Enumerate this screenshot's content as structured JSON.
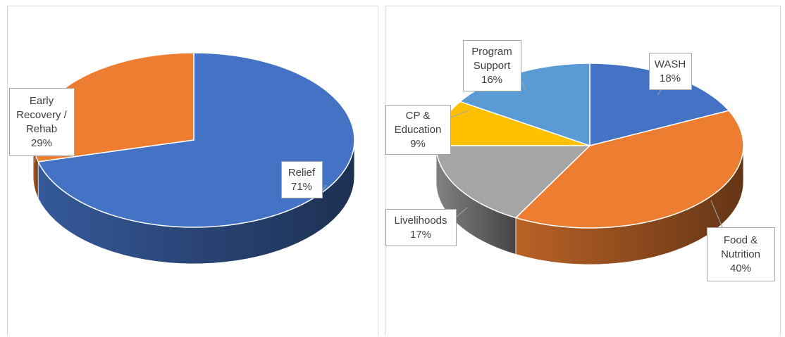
{
  "chart_data": [
    {
      "type": "pie",
      "style": "3d",
      "title": "",
      "slices": [
        {
          "label_lines": [
            "Relief"
          ],
          "value": 71,
          "value_label": "71%",
          "color": "#4472c4"
        },
        {
          "label_lines": [
            "Early",
            "Recovery /",
            "Rehab"
          ],
          "value": 29,
          "value_label": "29%",
          "color": "#ed7d31"
        }
      ],
      "legend": "none"
    },
    {
      "type": "pie",
      "style": "3d",
      "title": "",
      "slices": [
        {
          "label_lines": [
            "WASH"
          ],
          "value": 18,
          "value_label": "18%",
          "color": "#4472c4"
        },
        {
          "label_lines": [
            "Food &",
            "Nutrition"
          ],
          "value": 40,
          "value_label": "40%",
          "color": "#ed7d31"
        },
        {
          "label_lines": [
            "Livelihoods"
          ],
          "value": 17,
          "value_label": "17%",
          "color": "#a5a5a5"
        },
        {
          "label_lines": [
            "CP &",
            "Education"
          ],
          "value": 9,
          "value_label": "9%",
          "color": "#ffc000"
        },
        {
          "label_lines": [
            "Program",
            "Support"
          ],
          "value": 16,
          "value_label": "16%",
          "color": "#5b9bd5"
        }
      ],
      "legend": "none"
    }
  ]
}
